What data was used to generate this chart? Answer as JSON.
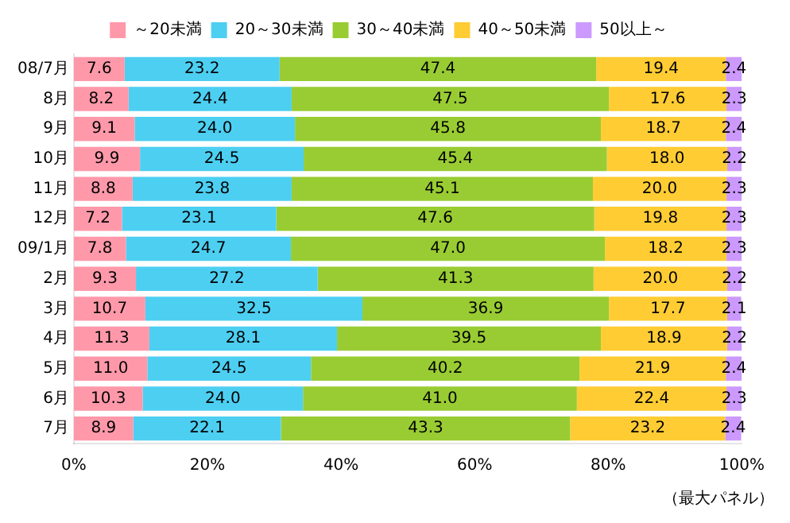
{
  "chart_data": {
    "type": "bar",
    "orientation": "horizontal",
    "stacked": true,
    "legend": "top",
    "grid": false,
    "categories": [
      "08/7月",
      "8月",
      "9月",
      "10月",
      "11月",
      "12月",
      "09/1月",
      "2月",
      "3月",
      "4月",
      "5月",
      "6月",
      "7月"
    ],
    "series": [
      {
        "name": "～20未満",
        "color": "#ff99aa",
        "values": [
          7.6,
          8.2,
          9.1,
          9.9,
          8.8,
          7.2,
          7.8,
          9.3,
          10.7,
          11.3,
          11.0,
          10.3,
          8.9
        ],
        "value_labels": [
          "7.6",
          "8.2",
          "9.1",
          "9.9",
          "8.8",
          "7.2",
          "7.8",
          "9.3",
          "10.7",
          "11.3",
          "11.0",
          "10.3",
          "8.9"
        ]
      },
      {
        "name": "20～30未満",
        "color": "#4dcff2",
        "values": [
          23.2,
          24.4,
          24.0,
          24.5,
          23.8,
          23.1,
          24.7,
          27.2,
          32.5,
          28.1,
          24.5,
          24.0,
          22.1
        ],
        "value_labels": [
          "23.2",
          "24.4",
          "24.0",
          "24.5",
          "23.8",
          "23.1",
          "24.7",
          "27.2",
          "32.5",
          "28.1",
          "24.5",
          "24.0",
          "22.1"
        ]
      },
      {
        "name": "30～40未満",
        "color": "#99cc33",
        "values": [
          47.4,
          47.5,
          45.8,
          45.4,
          45.1,
          47.6,
          47.0,
          41.3,
          36.9,
          39.5,
          40.2,
          41.0,
          43.3
        ],
        "value_labels": [
          "47.4",
          "47.5",
          "45.8",
          "45.4",
          "45.1",
          "47.6",
          "47.0",
          "41.3",
          "36.9",
          "39.5",
          "40.2",
          "41.0",
          "43.3"
        ]
      },
      {
        "name": "40～50未満",
        "color": "#ffcc33",
        "values": [
          19.4,
          17.6,
          18.7,
          18.0,
          20.0,
          19.8,
          18.2,
          20.0,
          17.7,
          18.9,
          21.9,
          22.4,
          23.2
        ],
        "value_labels": [
          "19.4",
          "17.6",
          "18.7",
          "18.0",
          "20.0",
          "19.8",
          "18.2",
          "20.0",
          "17.7",
          "18.9",
          "21.9",
          "22.4",
          "23.2"
        ]
      },
      {
        "name": "50以上～",
        "color": "#cc99ff",
        "values": [
          2.4,
          2.3,
          2.4,
          2.2,
          2.3,
          2.3,
          2.3,
          2.2,
          2.1,
          2.2,
          2.4,
          2.3,
          2.4
        ],
        "value_labels": [
          "2.4",
          "2.3",
          "2.4",
          "2.2",
          "2.3",
          "2.3",
          "2.3",
          "2.2",
          "2.1",
          "2.2",
          "2.4",
          "2.3",
          "2.4"
        ]
      }
    ],
    "xlim": [
      0,
      100
    ],
    "xticks": [
      {
        "value": 0,
        "label": "0%"
      },
      {
        "value": 20,
        "label": "20%"
      },
      {
        "value": 40,
        "label": "40%"
      },
      {
        "value": 60,
        "label": "60%"
      },
      {
        "value": 80,
        "label": "80%"
      },
      {
        "value": 100,
        "label": "100%"
      }
    ],
    "annotations": [
      "（最大パネル）"
    ]
  }
}
